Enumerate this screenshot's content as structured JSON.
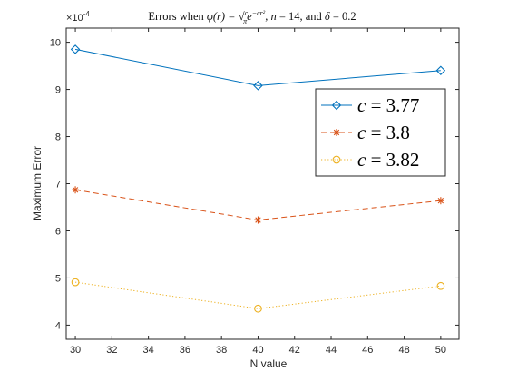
{
  "chart_data": {
    "type": "line",
    "title": "Errors when φ(r) = √(c/π) e^(−cr²), n = 14, and δ = 0.2",
    "title_parts": {
      "lead": "Errors when ",
      "phi": "φ(r) = ",
      "frac_c": "c",
      "frac_pi": "π",
      "e": "e",
      "exp": "−cr²",
      "tail_a": ", ",
      "n_var": "n",
      "n_eq": " = 14, and ",
      "d_var": "δ",
      "d_eq": " = 0.2"
    },
    "xlabel": "N value",
    "ylabel": "Maximum Error",
    "y_multiplier": "×10",
    "y_exponent": "-4",
    "x": [
      30,
      40,
      50
    ],
    "xlim": [
      29.5,
      51
    ],
    "ylim": [
      3.7,
      10.3
    ],
    "xticks": [
      30,
      32,
      34,
      36,
      38,
      40,
      42,
      44,
      46,
      48,
      50
    ],
    "yticks": [
      4,
      5,
      6,
      7,
      8,
      9,
      10
    ],
    "grid": false,
    "legend_position": "top-right",
    "series": [
      {
        "name": "c = 3.77",
        "values": [
          9.85,
          9.08,
          9.4
        ],
        "color": "#0072BD",
        "marker": "diamond",
        "line": "solid"
      },
      {
        "name": "c = 3.8",
        "values": [
          6.87,
          6.23,
          6.64
        ],
        "color": "#D95319",
        "marker": "asterisk",
        "line": "dashed"
      },
      {
        "name": "c = 3.82",
        "values": [
          4.91,
          4.35,
          4.83
        ],
        "color": "#EDB120",
        "marker": "circle",
        "line": "dotted"
      }
    ],
    "legend": [
      {
        "var": "c",
        "eq": " = 3.77"
      },
      {
        "var": "c",
        "eq": " = 3.8"
      },
      {
        "var": "c",
        "eq": " = 3.82"
      }
    ]
  }
}
